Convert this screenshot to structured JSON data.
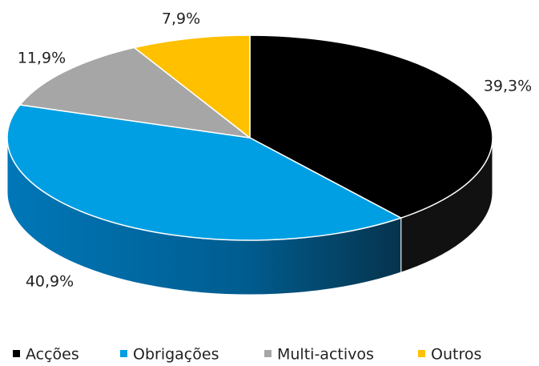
{
  "chart_data": {
    "type": "pie3d",
    "categories": [
      "Acções",
      "Obrigações",
      "Multi-activos",
      "Outros"
    ],
    "values": [
      39.3,
      40.9,
      11.9,
      7.9
    ],
    "value_labels": [
      "39,3%",
      "40,9%",
      "11,9%",
      "7,9%"
    ],
    "colors": [
      "#000000",
      "#009fe3",
      "#a6a6a6",
      "#ffc000"
    ],
    "legend": "bottom"
  }
}
